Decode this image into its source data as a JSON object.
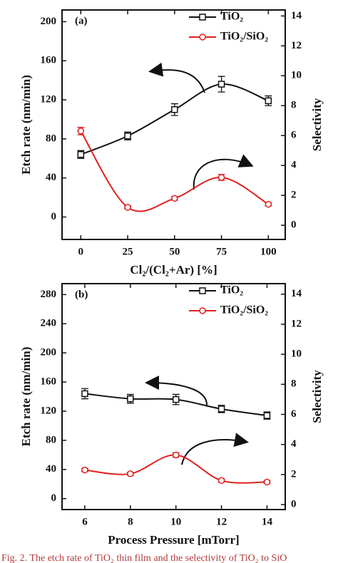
{
  "chart_data": [
    {
      "type": "line",
      "annotation": "(a)",
      "xlabel": "Cl₂/(Cl₂+Ar) [%]",
      "ylabel": "Etch rate (nm/min)",
      "y2label": "Selectivity",
      "x": [
        0,
        25,
        50,
        75,
        100
      ],
      "xlim": [
        -10,
        109
      ],
      "xticks": [
        0,
        25,
        50,
        75,
        100
      ],
      "ylim": [
        -23,
        212
      ],
      "yticks": [
        0,
        40,
        80,
        120,
        160,
        200
      ],
      "y2lim": [
        -0.95,
        14.4
      ],
      "y2ticks": [
        0,
        2,
        4,
        6,
        8,
        10,
        12,
        14
      ],
      "series": [
        {
          "name": "TiO₂",
          "color": "#111111",
          "marker": "square",
          "axis": "y",
          "values": [
            64,
            83,
            110,
            136,
            119
          ],
          "errors": [
            4,
            4,
            6,
            8,
            5
          ]
        },
        {
          "name": "TiO₂/SiO₂",
          "color": "#e0201e",
          "marker": "circle",
          "axis": "y2",
          "values": [
            6.3,
            1.2,
            1.8,
            3.2,
            1.4
          ],
          "errors": [
            0.25,
            0.1,
            0.12,
            0.2,
            0.1
          ]
        }
      ]
    },
    {
      "type": "line",
      "annotation": "(b)",
      "xlabel": "Process Pressure [mTorr]",
      "ylabel": "Etch rate (nm/min)",
      "y2label": "Selectivity",
      "x": [
        6,
        8,
        10,
        12,
        14
      ],
      "xlim": [
        5,
        14.8
      ],
      "xticks": [
        6,
        8,
        10,
        12,
        14
      ],
      "ylim": [
        -15,
        295
      ],
      "yticks": [
        0,
        40,
        80,
        120,
        160,
        200,
        240,
        280
      ],
      "y2lim": [
        -0.33,
        14.7
      ],
      "y2ticks": [
        0,
        2,
        4,
        6,
        8,
        10,
        12,
        14
      ],
      "series": [
        {
          "name": "TiO₂",
          "color": "#111111",
          "marker": "square",
          "axis": "y",
          "values": [
            144,
            137,
            136,
            123,
            114
          ],
          "errors": [
            7,
            6,
            7,
            5,
            5
          ]
        },
        {
          "name": "TiO₂/SiO₂",
          "color": "#e0201e",
          "marker": "circle",
          "axis": "y2",
          "values": [
            2.3,
            2.05,
            3.3,
            1.6,
            1.5
          ],
          "errors": [
            0.1,
            0.1,
            0.15,
            0.1,
            0.08
          ]
        }
      ]
    }
  ],
  "caption": "Fig. 2. The etch rate of TiO₂ thin film and the selectivity of TiO₂ to SiO"
}
